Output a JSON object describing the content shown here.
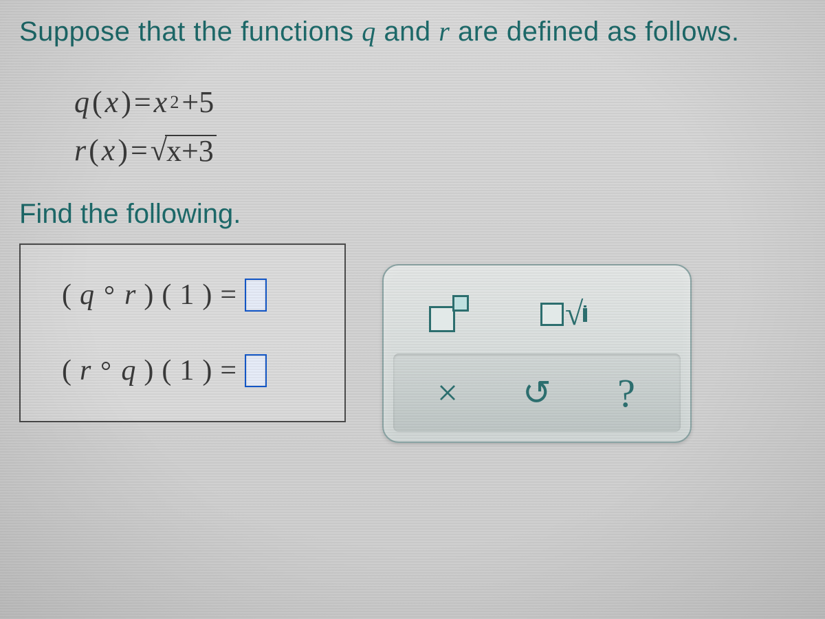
{
  "prompt_line": {
    "before": "Suppose that the functions ",
    "var1": "q",
    "mid": " and ",
    "var2": "r",
    "after": " are defined as follows."
  },
  "equations": {
    "q_lhs_fn": "q",
    "q_lhs_arg": "x",
    "q_rhs_base": "x",
    "q_rhs_exp": "2",
    "q_rhs_tail": "+5",
    "r_lhs_fn": "r",
    "r_lhs_arg": "x",
    "r_rhs_radicand": "x+3"
  },
  "find_line": "Find the following.",
  "answers": {
    "row1_left_fn": "q",
    "row1_right_fn": "r",
    "row1_arg": "1",
    "row2_left_fn": "r",
    "row2_right_fn": "q",
    "row2_arg": "1"
  },
  "palette": {
    "exp_tool": "exponent",
    "sqrt_tool": "square-root",
    "clear": "×",
    "reset": "↺",
    "help": "?"
  },
  "style": {
    "text_color": "#1d6a6a",
    "math_color": "#3a3a3a",
    "input_border": "#1257c9",
    "palette_border": "#8aa4a4"
  }
}
